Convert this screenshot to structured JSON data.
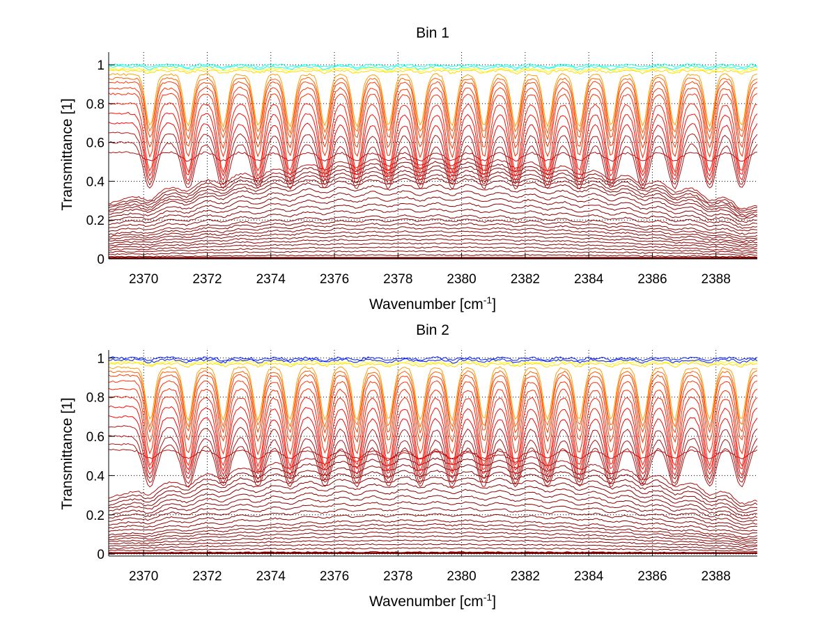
{
  "chart_data": [
    {
      "type": "line",
      "title": "Bin 1",
      "xlabel": "Wavenumber [cm^-1]",
      "xlabel_base": "Wavenumber [cm",
      "xlabel_sup": "-1",
      "xlabel_end": "]",
      "ylabel": "Transmittance [1]",
      "xlim": [
        2368.9,
        2389.3
      ],
      "ylim": [
        0,
        1.065
      ],
      "xticks": [
        2370,
        2372,
        2374,
        2376,
        2378,
        2380,
        2382,
        2384,
        2386,
        2388
      ],
      "yticks": [
        0,
        0.2,
        0.4,
        0.6,
        0.8,
        1
      ],
      "ytick_labels": [
        "0",
        "0.2",
        "0.4",
        "0.6",
        "0.8",
        "1"
      ],
      "grid": "dotted",
      "legend": "none",
      "series_count": 60,
      "colormap": "jet (high transmittance = blue/cyan/yellow, low = dark red)",
      "absorption_line_centers": [
        2370.2,
        2371.4,
        2372.5,
        2373.6,
        2374.6,
        2375.7,
        2376.7,
        2377.7,
        2378.7,
        2379.7,
        2380.7,
        2381.7,
        2382.7,
        2383.7,
        2384.7,
        2385.7,
        2386.7,
        2387.8,
        2388.8
      ],
      "broad_band_peak": {
        "x": 2379,
        "y": 0.5
      },
      "baseline_levels": [
        0.02,
        0.04,
        0.06,
        0.08,
        0.1,
        0.12,
        0.14,
        0.16,
        0.18,
        0.2,
        0.22,
        0.25,
        0.28,
        0.31,
        0.34,
        0.37,
        0.4,
        0.42,
        0.44,
        0.46,
        0.48,
        0.5,
        0.55,
        0.6,
        0.65,
        0.7,
        0.75,
        0.8,
        0.85,
        0.88,
        0.91,
        0.93,
        0.95,
        0.97,
        0.98,
        0.99,
        1.0
      ]
    },
    {
      "type": "line",
      "title": "Bin 2",
      "xlabel": "Wavenumber [cm^-1]",
      "xlabel_base": "Wavenumber [cm",
      "xlabel_sup": "-1",
      "xlabel_end": "]",
      "ylabel": "Transmittance [1]",
      "xlim": [
        2368.9,
        2389.3
      ],
      "ylim": [
        -0.01,
        1.04
      ],
      "xticks": [
        2370,
        2372,
        2374,
        2376,
        2378,
        2380,
        2382,
        2384,
        2386,
        2388
      ],
      "yticks": [
        0,
        0.2,
        0.4,
        0.6,
        0.8,
        1
      ],
      "ytick_labels": [
        "0",
        "0.2",
        "0.4",
        "0.6",
        "0.8",
        "1"
      ],
      "grid": "dotted",
      "legend": "none",
      "series_count": 70,
      "colormap": "jet (high transmittance = blue/cyan/yellow, low = dark red)",
      "absorption_line_centers": [
        2370.2,
        2371.4,
        2372.5,
        2373.6,
        2374.6,
        2375.7,
        2376.7,
        2377.7,
        2378.7,
        2379.7,
        2380.7,
        2381.7,
        2382.7,
        2383.7,
        2384.7,
        2385.7,
        2386.7,
        2387.8,
        2388.8
      ],
      "broad_band_peak": {
        "x": 2379,
        "y": 0.48
      },
      "baseline_levels": [
        0.01,
        0.03,
        0.05,
        0.07,
        0.09,
        0.11,
        0.13,
        0.15,
        0.17,
        0.2,
        0.23,
        0.26,
        0.29,
        0.32,
        0.35,
        0.38,
        0.41,
        0.44,
        0.47,
        0.5,
        0.53,
        0.56,
        0.6,
        0.65,
        0.7,
        0.75,
        0.8,
        0.84,
        0.88,
        0.91,
        0.93,
        0.95,
        0.97,
        0.98,
        0.99,
        1.0
      ]
    }
  ]
}
